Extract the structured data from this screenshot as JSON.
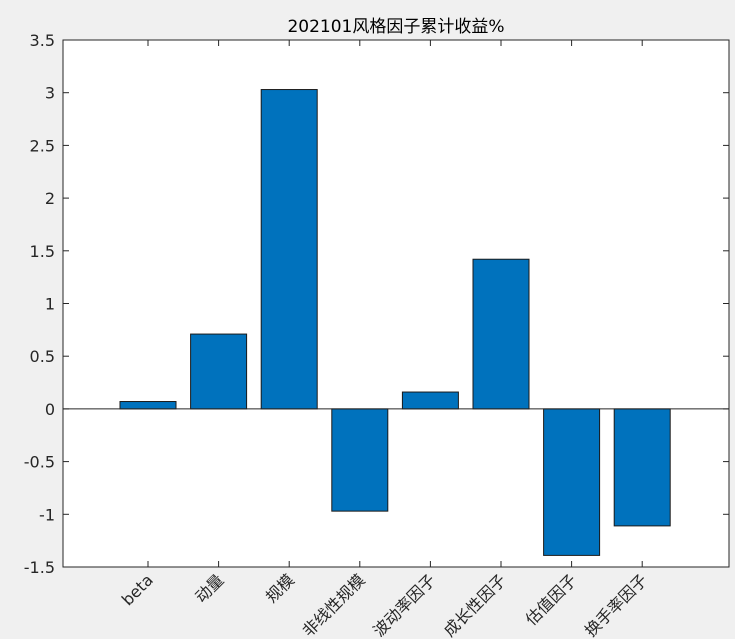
{
  "chart_data": {
    "type": "bar",
    "title": "202101风格因子累计收益%",
    "xlabel": "",
    "ylabel": "",
    "categories": [
      "beta",
      "动量",
      "规模",
      "非线性规模",
      "波动率因子",
      "成长性因子",
      "估值因子",
      "换手率因子"
    ],
    "values": [
      0.07,
      0.71,
      3.03,
      -0.97,
      0.16,
      1.42,
      -1.39,
      -1.11
    ],
    "ylim": [
      -1.5,
      3.5
    ],
    "yticks": [
      -1.5,
      -1,
      -0.5,
      0,
      0.5,
      1,
      1.5,
      2,
      2.5,
      3,
      3.5
    ],
    "ytick_labels": [
      "-1.5",
      "-1",
      "-0.5",
      "0",
      "0.5",
      "1",
      "1.5",
      "2",
      "2.5",
      "3",
      "3.5"
    ],
    "grid": false,
    "legend": "none",
    "bar_color": "#0072BD",
    "axis_color": "#262626",
    "plot_background": "#ffffff",
    "figure_background": "#f0f0f0"
  }
}
